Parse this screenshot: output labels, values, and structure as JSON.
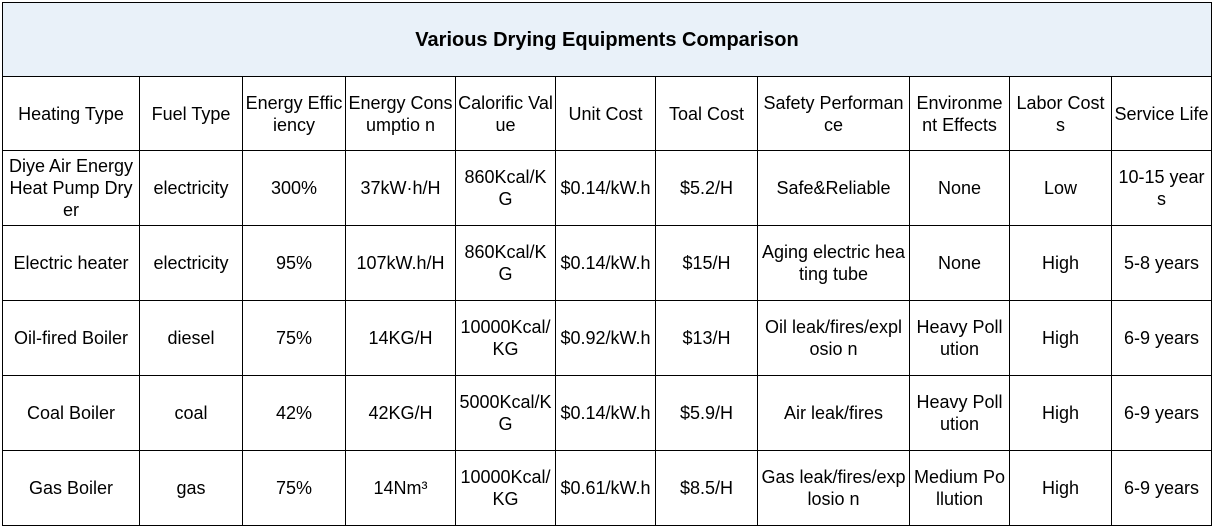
{
  "title": "Various Drying Equipments Comparison",
  "headers": [
    "Heating Type",
    "Fuel Type",
    "Energy Efficiency",
    "Energy Consumptio n",
    "Calorific Value",
    "Unit Cost",
    "Toal Cost",
    "Safety Performance",
    "Environme nt Effects",
    "Labor Costs",
    "Service Life"
  ],
  "rows": [
    [
      "Diye Air Energy Heat Pump Dryer",
      "electricity",
      "300%",
      "37kW·h/H",
      "860Kcal/K G",
      "$0.14/kW.h",
      "$5.2/H",
      "Safe&Reliable",
      "None",
      "Low",
      "10-15 years"
    ],
    [
      "Electric heater",
      "electricity",
      "95%",
      "107kW.h/H",
      "860Kcal/K G",
      "$0.14/kW.h",
      "$15/H",
      "Aging electric heating tube",
      "None",
      "High",
      "5-8 years"
    ],
    [
      "Oil-fired Boiler",
      "diesel",
      "75%",
      "14KG/H",
      "10000Kcal/ KG",
      "$0.92/kW.h",
      "$13/H",
      "Oil leak/fires/explosio n",
      "Heavy Pollution",
      "High",
      "6-9 years"
    ],
    [
      "Coal Boiler",
      "coal",
      "42%",
      "42KG/H",
      "5000Kcal/K G",
      "$0.14/kW.h",
      "$5.9/H",
      "Air leak/fires",
      "Heavy Pollution",
      "High",
      "6-9 years"
    ],
    [
      "Gas Boiler",
      "gas",
      "75%",
      "14Nm³",
      "10000Kcal/ KG",
      "$0.61/kW.h",
      "$8.5/H",
      "Gas leak/fires/explosio n",
      "Medium Pollution",
      "High",
      "6-9 years"
    ]
  ],
  "colors": {
    "title_background": "#e9f1f9",
    "border": "#000000",
    "text": "#000000"
  }
}
